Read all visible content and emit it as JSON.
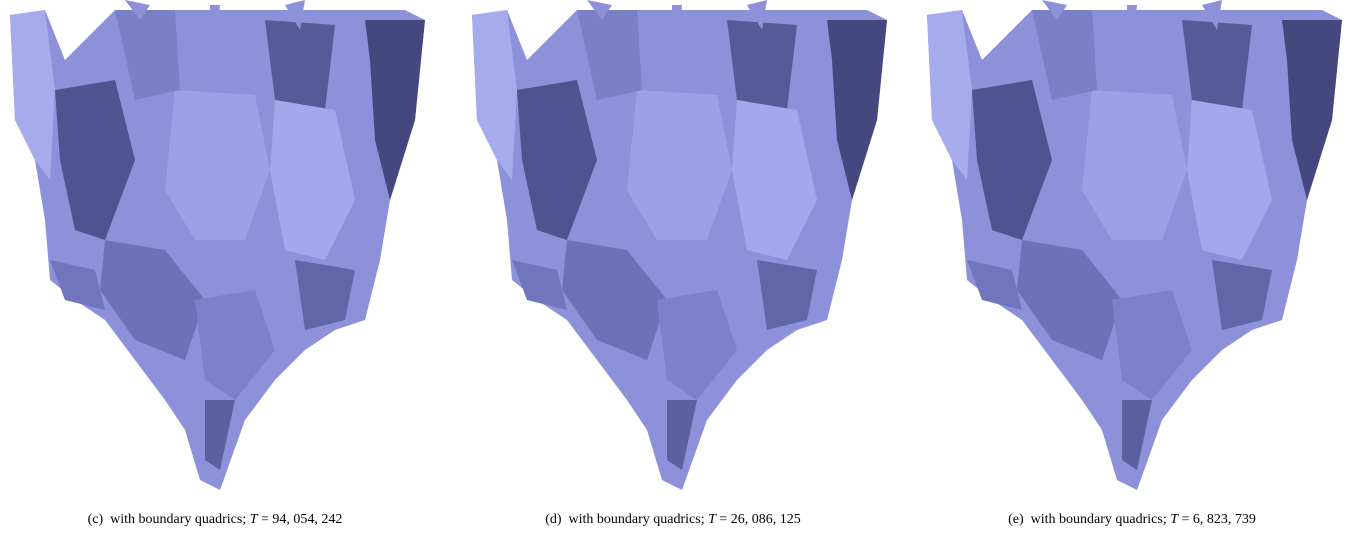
{
  "figure": {
    "panels": [
      {
        "label": "(c)",
        "text": "with boundary quadrics;",
        "math_var": "T",
        "math_rest": "= 94, 054, 242"
      },
      {
        "label": "(d)",
        "text": "with boundary quadrics;",
        "math_var": "T",
        "math_rest": "= 26, 086, 125"
      },
      {
        "label": "(e)",
        "text": "with boundary quadrics;",
        "math_var": "T",
        "math_rest": "= 6, 823, 739"
      }
    ]
  }
}
